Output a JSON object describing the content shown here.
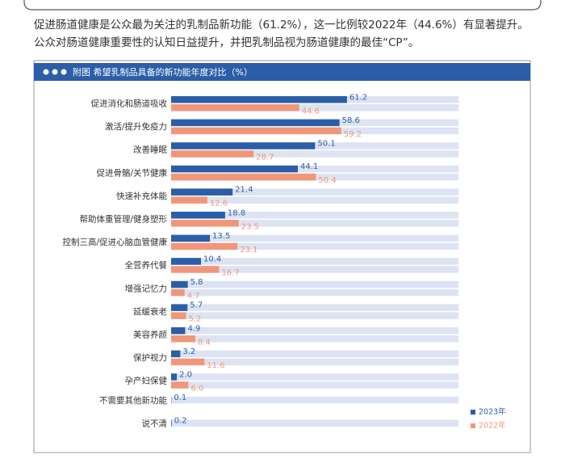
{
  "text": {
    "lines": [
      "促进肠道健康是公众最为关注的乳制品新功能（61.2%），这一比例较2022年（44.6%）有显著提升。",
      "公众对肠道健康重要性的认知日益提升，并把乳制品视为肠道健康的最佳“CP”。"
    ]
  },
  "chart_data": {
    "type": "bar",
    "orientation": "horizontal",
    "title": "附图  希望乳制品具备的新功能年度对比（%）",
    "categories": [
      "促进消化和肠道吸收",
      "激活/提升免疫力",
      "改善睡眠",
      "促进骨骼/关节健康",
      "快速补充体能",
      "帮助体重管理/健身塑形",
      "控制三高/促进心脑血管健康",
      "全营养代餐",
      "增强记忆力",
      "延缓衰老",
      "美容养颜",
      "保护视力",
      "孕产妇保健",
      "不需要其他新功能",
      "说不清"
    ],
    "series": [
      {
        "name": "2023年",
        "color": "#2b5ea7",
        "values": [
          61.2,
          58.6,
          50.1,
          44.1,
          21.4,
          18.8,
          13.5,
          10.4,
          5.8,
          5.7,
          4.9,
          3.2,
          2.0,
          0.1,
          0.2
        ],
        "value_labels": [
          "61.2",
          "58.6",
          "50.1",
          "44.1",
          "21.4",
          "18.8",
          "13.5",
          "10.4",
          "5.8",
          "5.7",
          "4.9",
          "3.2",
          "2.0",
          "0.1",
          "0.2"
        ]
      },
      {
        "name": "2022年",
        "color": "#f0977a",
        "values": [
          44.6,
          59.2,
          28.7,
          50.4,
          12.6,
          23.5,
          23.1,
          16.7,
          4.7,
          5.2,
          8.4,
          11.6,
          6.0,
          null,
          null
        ],
        "value_labels": [
          "44.6",
          "59.2",
          "28.7",
          "50.4",
          "12.6",
          "23.5",
          "23.1",
          "16.7",
          "4.7",
          "5.2",
          "8.4",
          "11.6",
          "6.0",
          null,
          null
        ]
      }
    ],
    "xlim": [
      0,
      100
    ]
  }
}
